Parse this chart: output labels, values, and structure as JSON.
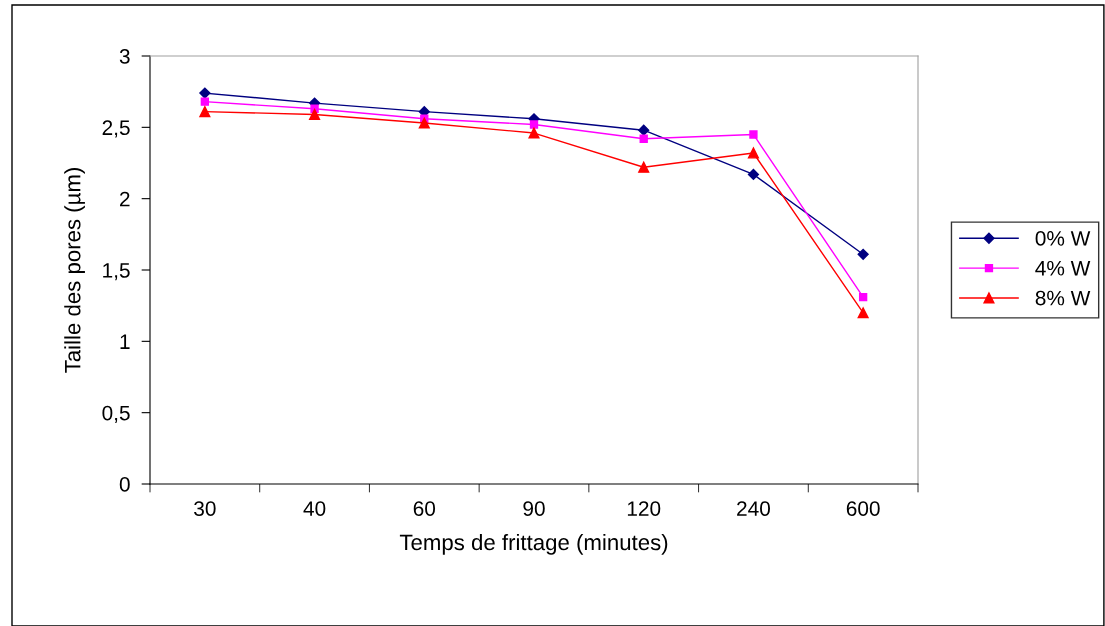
{
  "chart_data": {
    "type": "line",
    "xlabel": "Temps de frittage (minutes)",
    "ylabel": "Taille des pores (µm)",
    "categories": [
      "30",
      "40",
      "60",
      "90",
      "120",
      "240",
      "600"
    ],
    "series": [
      {
        "name": "0% W",
        "color": "#000080",
        "marker": "diamond",
        "values": [
          2.74,
          2.67,
          2.61,
          2.56,
          2.48,
          2.17,
          1.61
        ]
      },
      {
        "name": "4% W",
        "color": "#ff00ff",
        "marker": "square",
        "values": [
          2.68,
          2.63,
          2.56,
          2.52,
          2.42,
          2.45,
          1.31
        ]
      },
      {
        "name": "8% W",
        "color": "#ff0000",
        "marker": "triangle",
        "values": [
          2.61,
          2.59,
          2.53,
          2.46,
          2.22,
          2.32,
          1.2
        ]
      }
    ],
    "ylim": [
      0,
      3
    ],
    "yticks": [
      0,
      {
        "value": 0.5,
        "label": "0,5"
      },
      1,
      {
        "value": 1.5,
        "label": "1,5"
      },
      2,
      {
        "value": 2.5,
        "label": "2,5"
      },
      3
    ],
    "grid": false,
    "legend": "right",
    "line_style": "solid"
  }
}
